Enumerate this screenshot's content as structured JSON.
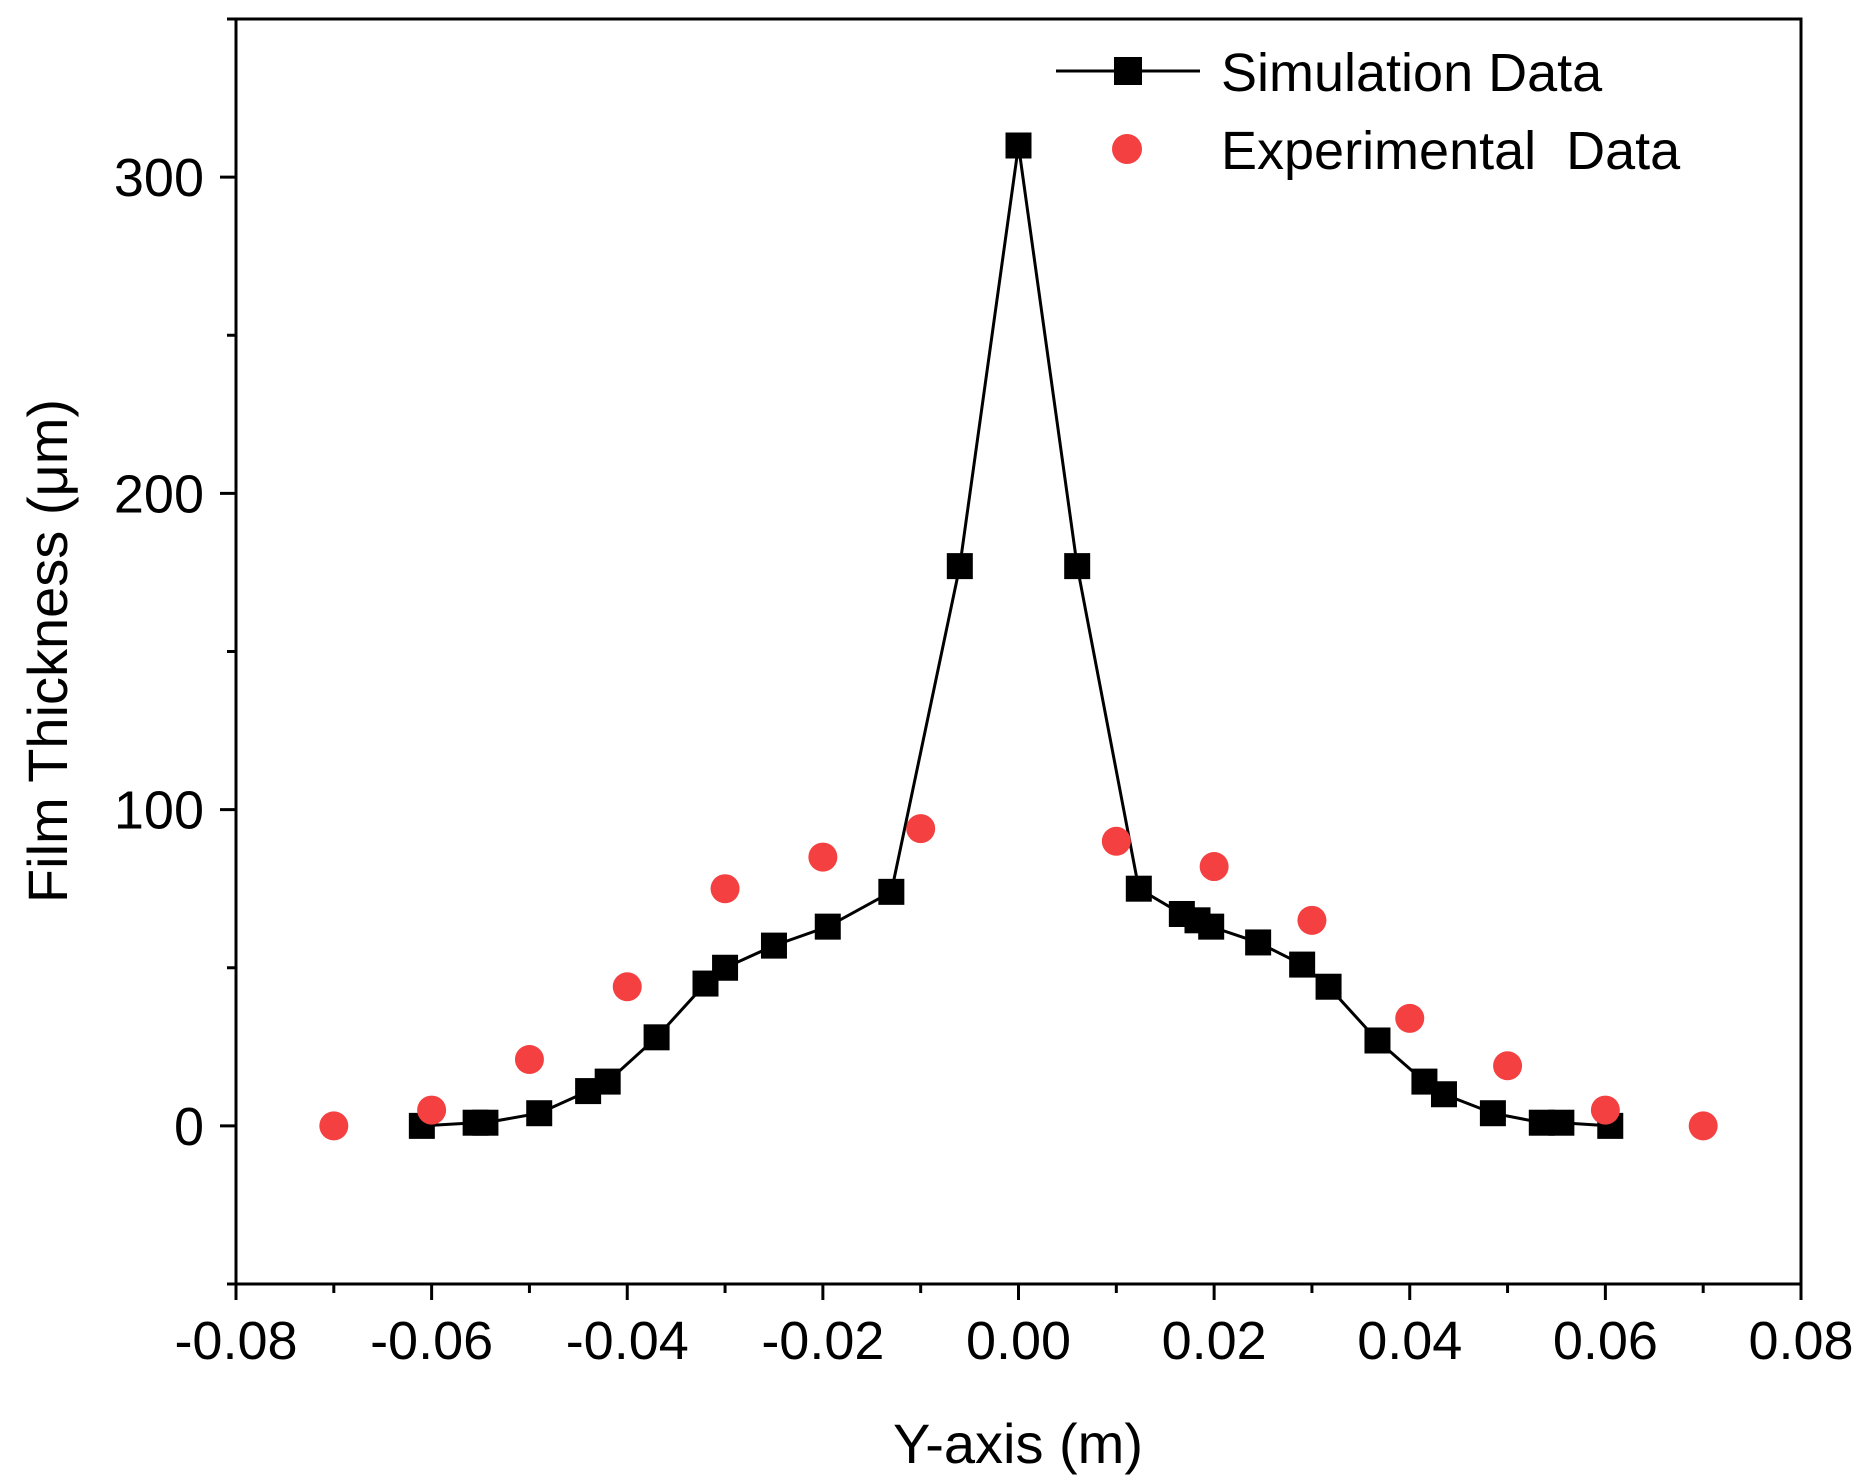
{
  "chart_data": {
    "type": "scatter",
    "title": "",
    "xlabel": "Y-axis (m)",
    "ylabel": "Film Thickness (μm)",
    "xlim": [
      -0.08,
      0.08
    ],
    "ylim": [
      -50,
      350
    ],
    "xticks": [
      -0.08,
      -0.06,
      -0.04,
      -0.02,
      0.0,
      0.02,
      0.04,
      0.06,
      0.08
    ],
    "xtick_labels": [
      "-0.08",
      "-0.06",
      "-0.04",
      "-0.02",
      "0.00",
      "0.02",
      "0.04",
      "0.06",
      "0.08"
    ],
    "yticks": [
      0,
      100,
      200,
      300
    ],
    "ytick_labels": [
      "0",
      "100",
      "200",
      "300"
    ],
    "legend_position": "top-right",
    "series": [
      {
        "name": "Simulation Data",
        "style": "line-square",
        "color": "#000000",
        "x": [
          -0.061,
          -0.0555,
          -0.0545,
          -0.049,
          -0.044,
          -0.042,
          -0.037,
          -0.032,
          -0.03,
          -0.025,
          -0.0195,
          -0.013,
          -0.006,
          0.0,
          0.006,
          0.0123,
          0.0167,
          0.0183,
          0.0197,
          0.0245,
          0.029,
          0.0317,
          0.0367,
          0.0415,
          0.0435,
          0.0485,
          0.0535,
          0.0555,
          0.0605
        ],
        "y": [
          0,
          1,
          1,
          4,
          11,
          14,
          28,
          45,
          50,
          57,
          63,
          74,
          177,
          310,
          177,
          75,
          67,
          65,
          63,
          58,
          51,
          44,
          27,
          14,
          10,
          4,
          1,
          1,
          0
        ]
      },
      {
        "name": "Experimental  Data",
        "style": "circle",
        "color": "#f44040",
        "x": [
          -0.07,
          -0.06,
          -0.05,
          -0.04,
          -0.03,
          -0.02,
          -0.01,
          0.01,
          0.02,
          0.03,
          0.04,
          0.05,
          0.06,
          0.07
        ],
        "y": [
          0,
          5,
          21,
          44,
          75,
          85,
          94,
          90,
          82,
          65,
          34,
          19,
          5,
          0
        ]
      }
    ]
  }
}
